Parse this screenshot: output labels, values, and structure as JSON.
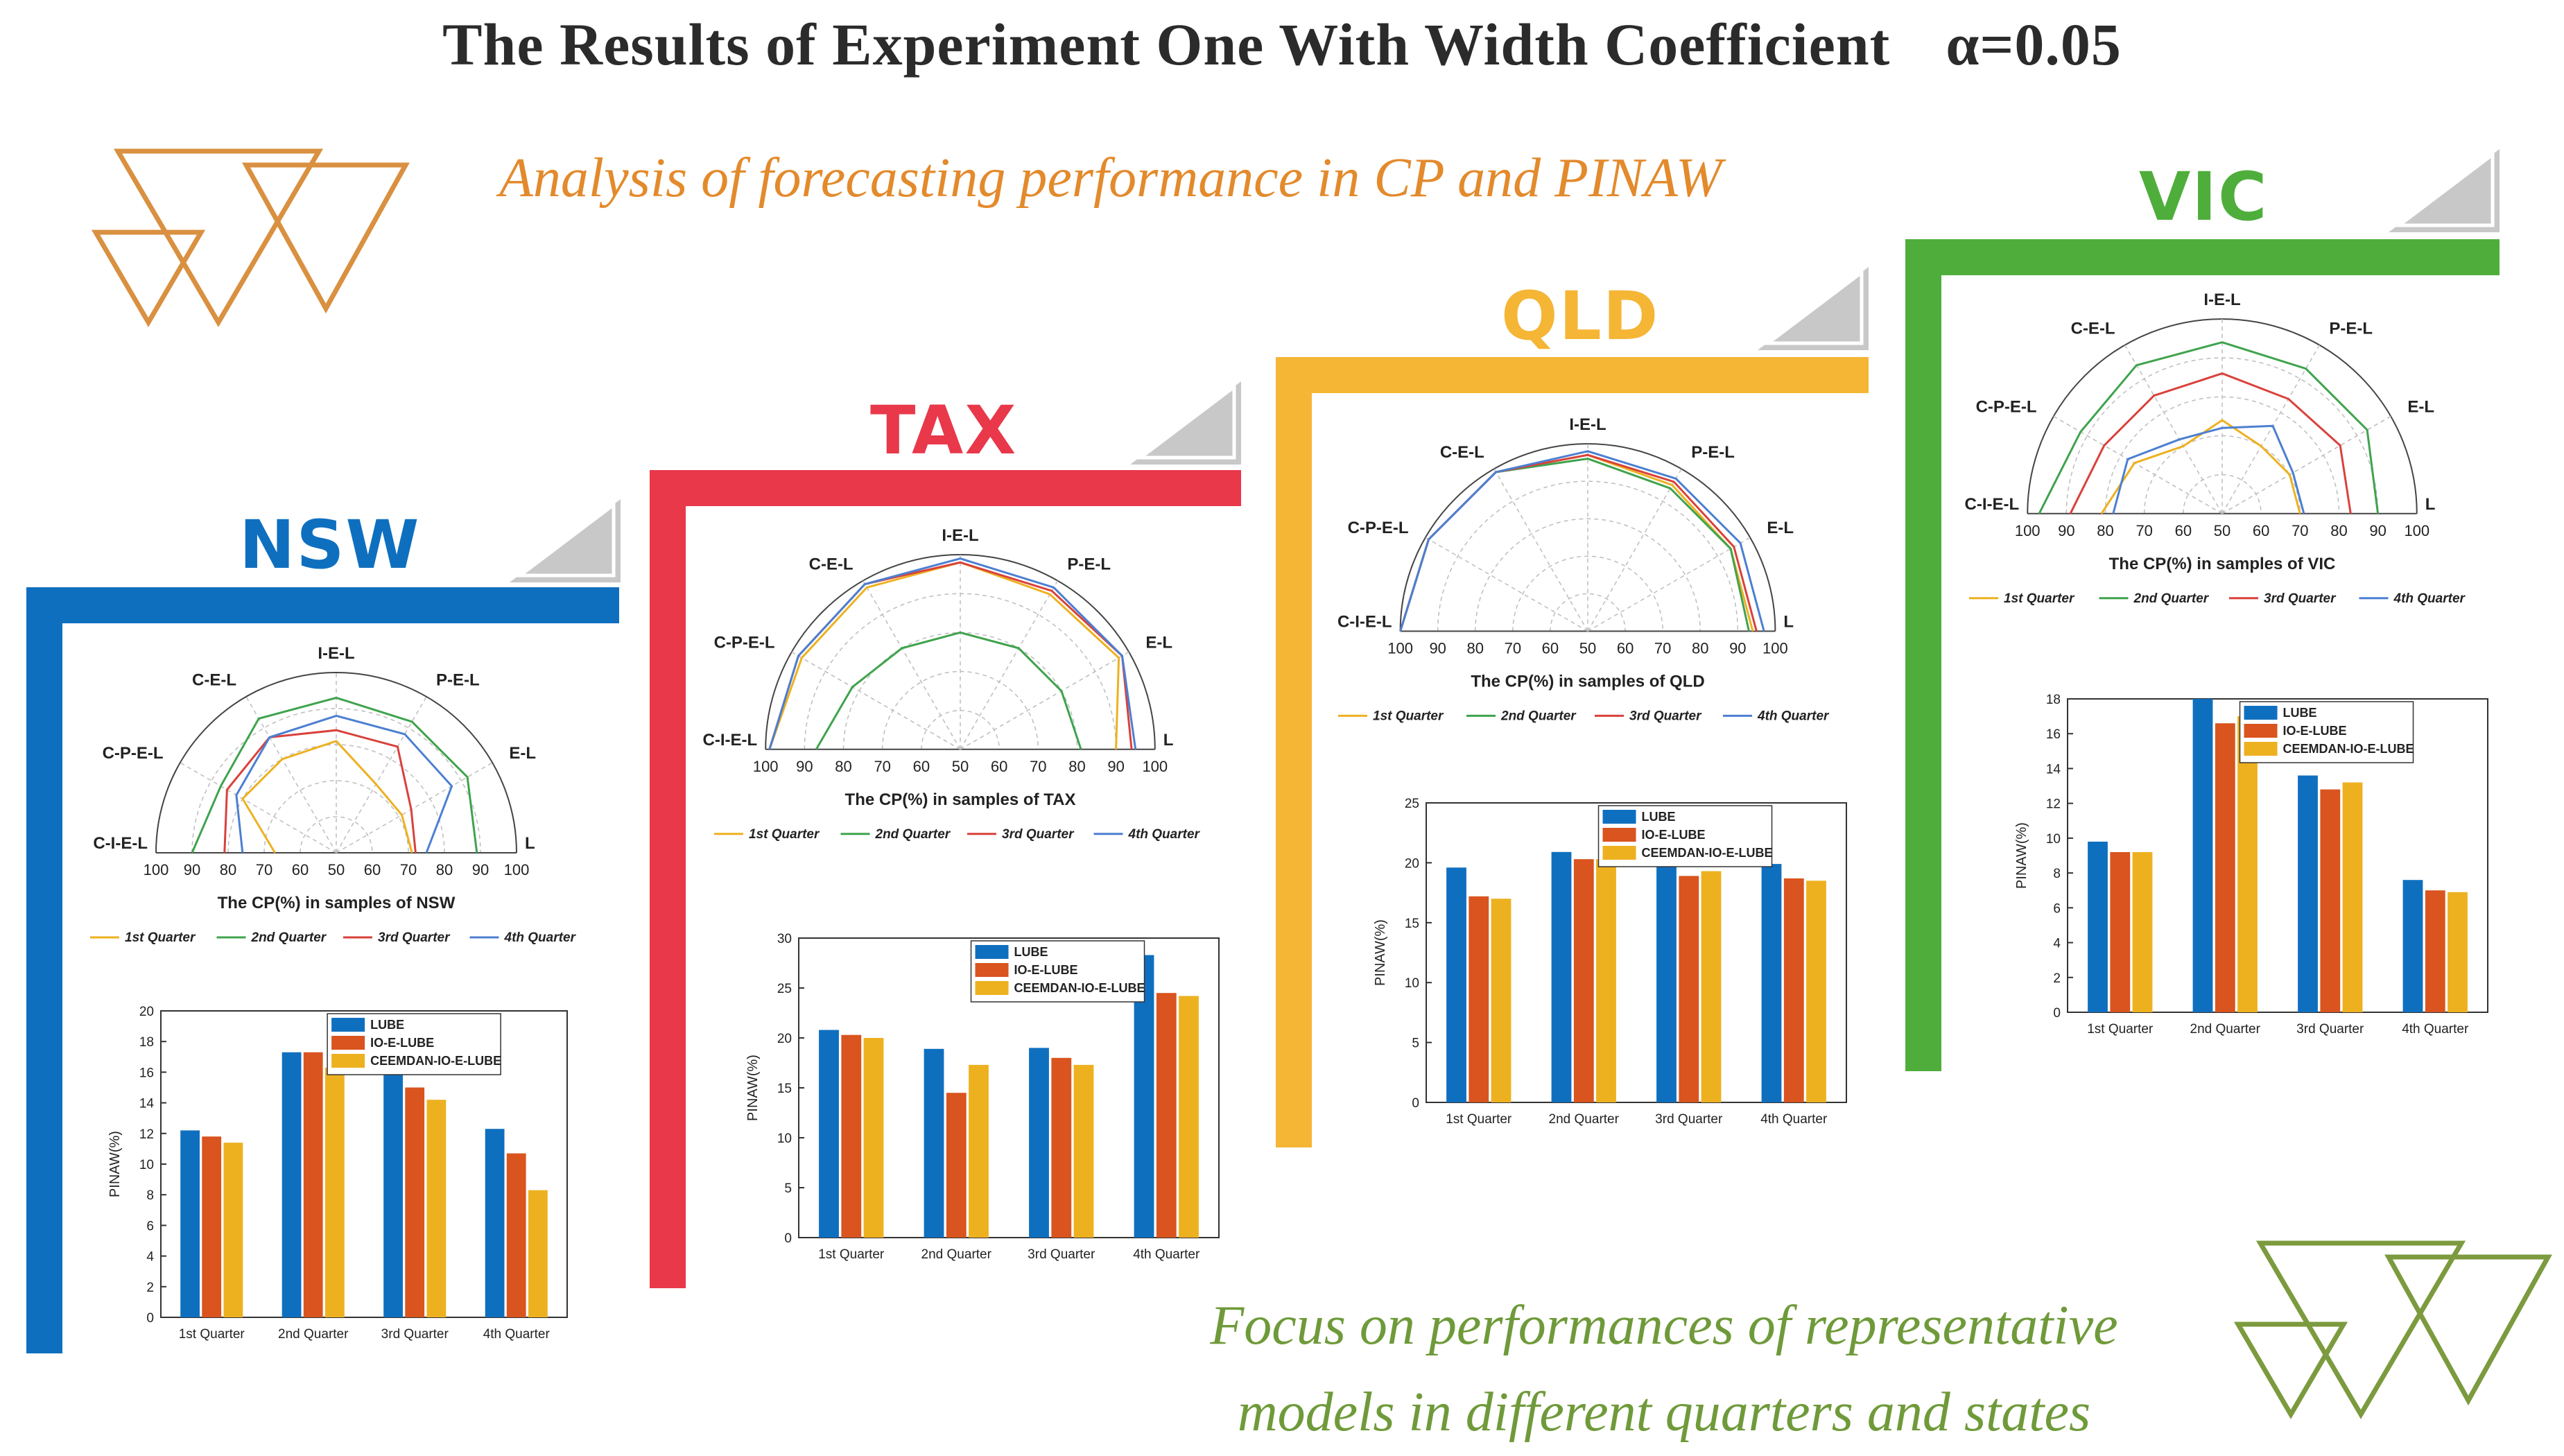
{
  "title": "The Results of Experiment One With Width Coefficient",
  "title_alpha": "α=0.05",
  "subtitle_top": "Analysis of forecasting performance in CP and PINAW",
  "subtitle_bottom_line1": "Focus on performances of representative",
  "subtitle_bottom_line2": "models in different quarters and states",
  "colors": {
    "nsw": "#0F6FBF",
    "tax": "#E8384A",
    "qld": "#F5B535",
    "vic": "#4FAE3B",
    "lube": "#0F6FBF",
    "ioelube": "#D9541E",
    "ceemdan": "#EDB120",
    "q1": "#EDB120",
    "q2": "#3FA34D",
    "q3": "#D9413B",
    "q4": "#4C7FD1"
  },
  "chart_data": [
    {
      "state": "NSW",
      "type": "line",
      "subtype": "polar",
      "title": "The CP(%) in samples of NSW",
      "angular_labels": [
        "L",
        "E-L",
        "P-E-L",
        "I-E-L",
        "C-E-L",
        "C-P-E-L",
        "C-I-E-L"
      ],
      "radial_ticks": [
        "100",
        "90",
        "80",
        "70",
        "60",
        "50",
        "60",
        "70",
        "80",
        "90",
        "100"
      ],
      "rlim": [
        50,
        100
      ],
      "series": [
        {
          "name": "1st Quarter",
          "values": [
            71,
            71,
            72,
            81,
            80,
            80,
            67
          ]
        },
        {
          "name": "2nd Quarter",
          "values": [
            89,
            92,
            92,
            93,
            93,
            87,
            90
          ]
        },
        {
          "name": "3rd Quarter",
          "values": [
            72,
            74,
            84,
            84,
            87,
            85,
            81
          ]
        },
        {
          "name": "4th Quarter",
          "values": [
            75,
            87,
            88,
            88,
            87,
            82,
            76
          ]
        }
      ]
    },
    {
      "state": "NSW",
      "type": "bar",
      "categories": [
        "1st Quarter",
        "2nd Quarter",
        "3rd Quarter",
        "4th Quarter"
      ],
      "ylabel": "PINAW(%)",
      "ylim": [
        0,
        20
      ],
      "yticks": [
        "0",
        "2",
        "4",
        "6",
        "8",
        "10",
        "12",
        "14",
        "16",
        "18",
        "20"
      ],
      "series": [
        {
          "name": "LUBE",
          "values": [
            12.2,
            17.3,
            17.0,
            12.3
          ]
        },
        {
          "name": "IO-E-LUBE",
          "values": [
            11.8,
            17.3,
            15.0,
            10.7
          ]
        },
        {
          "name": "CEEMDAN-IO-E-LUBE",
          "values": [
            11.4,
            16.3,
            14.2,
            8.3
          ]
        }
      ]
    },
    {
      "state": "TAX",
      "type": "line",
      "subtype": "polar",
      "title": "The CP(%) in samples of TAX",
      "angular_labels": [
        "L",
        "E-L",
        "P-E-L",
        "I-E-L",
        "C-E-L",
        "C-P-E-L",
        "C-I-E-L"
      ],
      "radial_ticks": [
        "100",
        "90",
        "80",
        "70",
        "60",
        "50",
        "60",
        "70",
        "80",
        "90",
        "100"
      ],
      "rlim": [
        50,
        100
      ],
      "series": [
        {
          "name": "1st Quarter",
          "values": [
            90,
            97,
            96,
            98,
            98,
            97,
            99
          ]
        },
        {
          "name": "2nd Quarter",
          "values": [
            81,
            80,
            80,
            80,
            80,
            82,
            87
          ]
        },
        {
          "name": "3rd Quarter",
          "values": [
            94,
            98,
            97,
            98,
            99,
            98,
            99
          ]
        },
        {
          "name": "4th Quarter",
          "values": [
            95,
            98,
            98,
            99,
            99,
            98,
            99
          ]
        }
      ]
    },
    {
      "state": "TAX",
      "type": "bar",
      "categories": [
        "1st Quarter",
        "2nd Quarter",
        "3rd Quarter",
        "4th Quarter"
      ],
      "ylabel": "PINAW(%)",
      "ylim": [
        0,
        30
      ],
      "yticks": [
        "0",
        "5",
        "10",
        "15",
        "20",
        "25",
        "30"
      ],
      "series": [
        {
          "name": "LUBE",
          "values": [
            20.8,
            18.9,
            19.0,
            28.3
          ]
        },
        {
          "name": "IO-E-LUBE",
          "values": [
            20.3,
            14.5,
            18.0,
            24.5
          ]
        },
        {
          "name": "CEEMDAN-IO-E-LUBE",
          "values": [
            20.0,
            17.3,
            17.3,
            24.2
          ]
        }
      ]
    },
    {
      "state": "QLD",
      "type": "line",
      "subtype": "polar",
      "title": "The CP(%) in samples of QLD",
      "angular_labels": [
        "L",
        "E-L",
        "P-E-L",
        "I-E-L",
        "C-E-L",
        "C-P-E-L",
        "C-I-E-L"
      ],
      "radial_ticks": [
        "100",
        "90",
        "80",
        "70",
        "60",
        "50",
        "60",
        "70",
        "80",
        "90",
        "100"
      ],
      "rlim": [
        50,
        100
      ],
      "series": [
        {
          "name": "1st Quarter",
          "values": [
            94,
            94,
            95,
            97,
            99,
            99,
            100
          ]
        },
        {
          "name": "2nd Quarter",
          "values": [
            93,
            94,
            94,
            96,
            99,
            99,
            100
          ]
        },
        {
          "name": "3rd Quarter",
          "values": [
            95,
            95,
            96,
            97,
            99,
            99,
            100
          ]
        },
        {
          "name": "4th Quarter",
          "values": [
            97,
            97,
            97,
            98,
            99,
            99,
            100
          ]
        }
      ]
    },
    {
      "state": "QLD",
      "type": "bar",
      "categories": [
        "1st Quarter",
        "2nd Quarter",
        "3rd Quarter",
        "4th Quarter"
      ],
      "ylabel": "PINAW(%)",
      "ylim": [
        0,
        25
      ],
      "yticks": [
        "0",
        "5",
        "10",
        "15",
        "20",
        "25"
      ],
      "series": [
        {
          "name": "LUBE",
          "values": [
            19.6,
            20.9,
            19.7,
            19.9
          ]
        },
        {
          "name": "IO-E-LUBE",
          "values": [
            17.2,
            20.3,
            18.9,
            18.7
          ]
        },
        {
          "name": "CEEMDAN-IO-E-LUBE",
          "values": [
            17.0,
            20.3,
            19.3,
            18.5
          ]
        }
      ]
    },
    {
      "state": "VIC",
      "type": "line",
      "subtype": "polar",
      "title": "The CP(%) in samples of VIC",
      "angular_labels": [
        "L",
        "E-L",
        "P-E-L",
        "I-E-L",
        "C-E-L",
        "C-P-E-L",
        "C-I-E-L"
      ],
      "radial_ticks": [
        "100",
        "90",
        "80",
        "70",
        "60",
        "50",
        "60",
        "70",
        "80",
        "90",
        "100"
      ],
      "rlim": [
        50,
        100
      ],
      "series": [
        {
          "name": "1st Quarter",
          "values": [
            70,
            70,
            70,
            74,
            70,
            76,
            81
          ]
        },
        {
          "name": "2nd Quarter",
          "values": [
            90,
            93,
            93,
            94,
            94,
            92,
            97
          ]
        },
        {
          "name": "3rd Quarter",
          "values": [
            83,
            85,
            84,
            86,
            85,
            85,
            89
          ]
        },
        {
          "name": "4th Quarter",
          "values": [
            71,
            71,
            76,
            72,
            72,
            78,
            78
          ]
        }
      ]
    },
    {
      "state": "VIC",
      "type": "bar",
      "categories": [
        "1st Quarter",
        "2nd Quarter",
        "3rd Quarter",
        "4th Quarter"
      ],
      "ylabel": "PINAW(%)",
      "ylim": [
        0,
        18
      ],
      "yticks": [
        "0",
        "2",
        "4",
        "6",
        "8",
        "10",
        "12",
        "14",
        "16",
        "18"
      ],
      "series": [
        {
          "name": "LUBE",
          "values": [
            9.8,
            18.0,
            13.6,
            7.6
          ]
        },
        {
          "name": "IO-E-LUBE",
          "values": [
            9.2,
            16.6,
            12.8,
            7.0
          ]
        },
        {
          "name": "CEEMDAN-IO-E-LUBE",
          "values": [
            9.2,
            17.0,
            13.2,
            6.9
          ]
        }
      ]
    }
  ],
  "states": [
    "NSW",
    "TAX",
    "QLD",
    "VIC"
  ]
}
